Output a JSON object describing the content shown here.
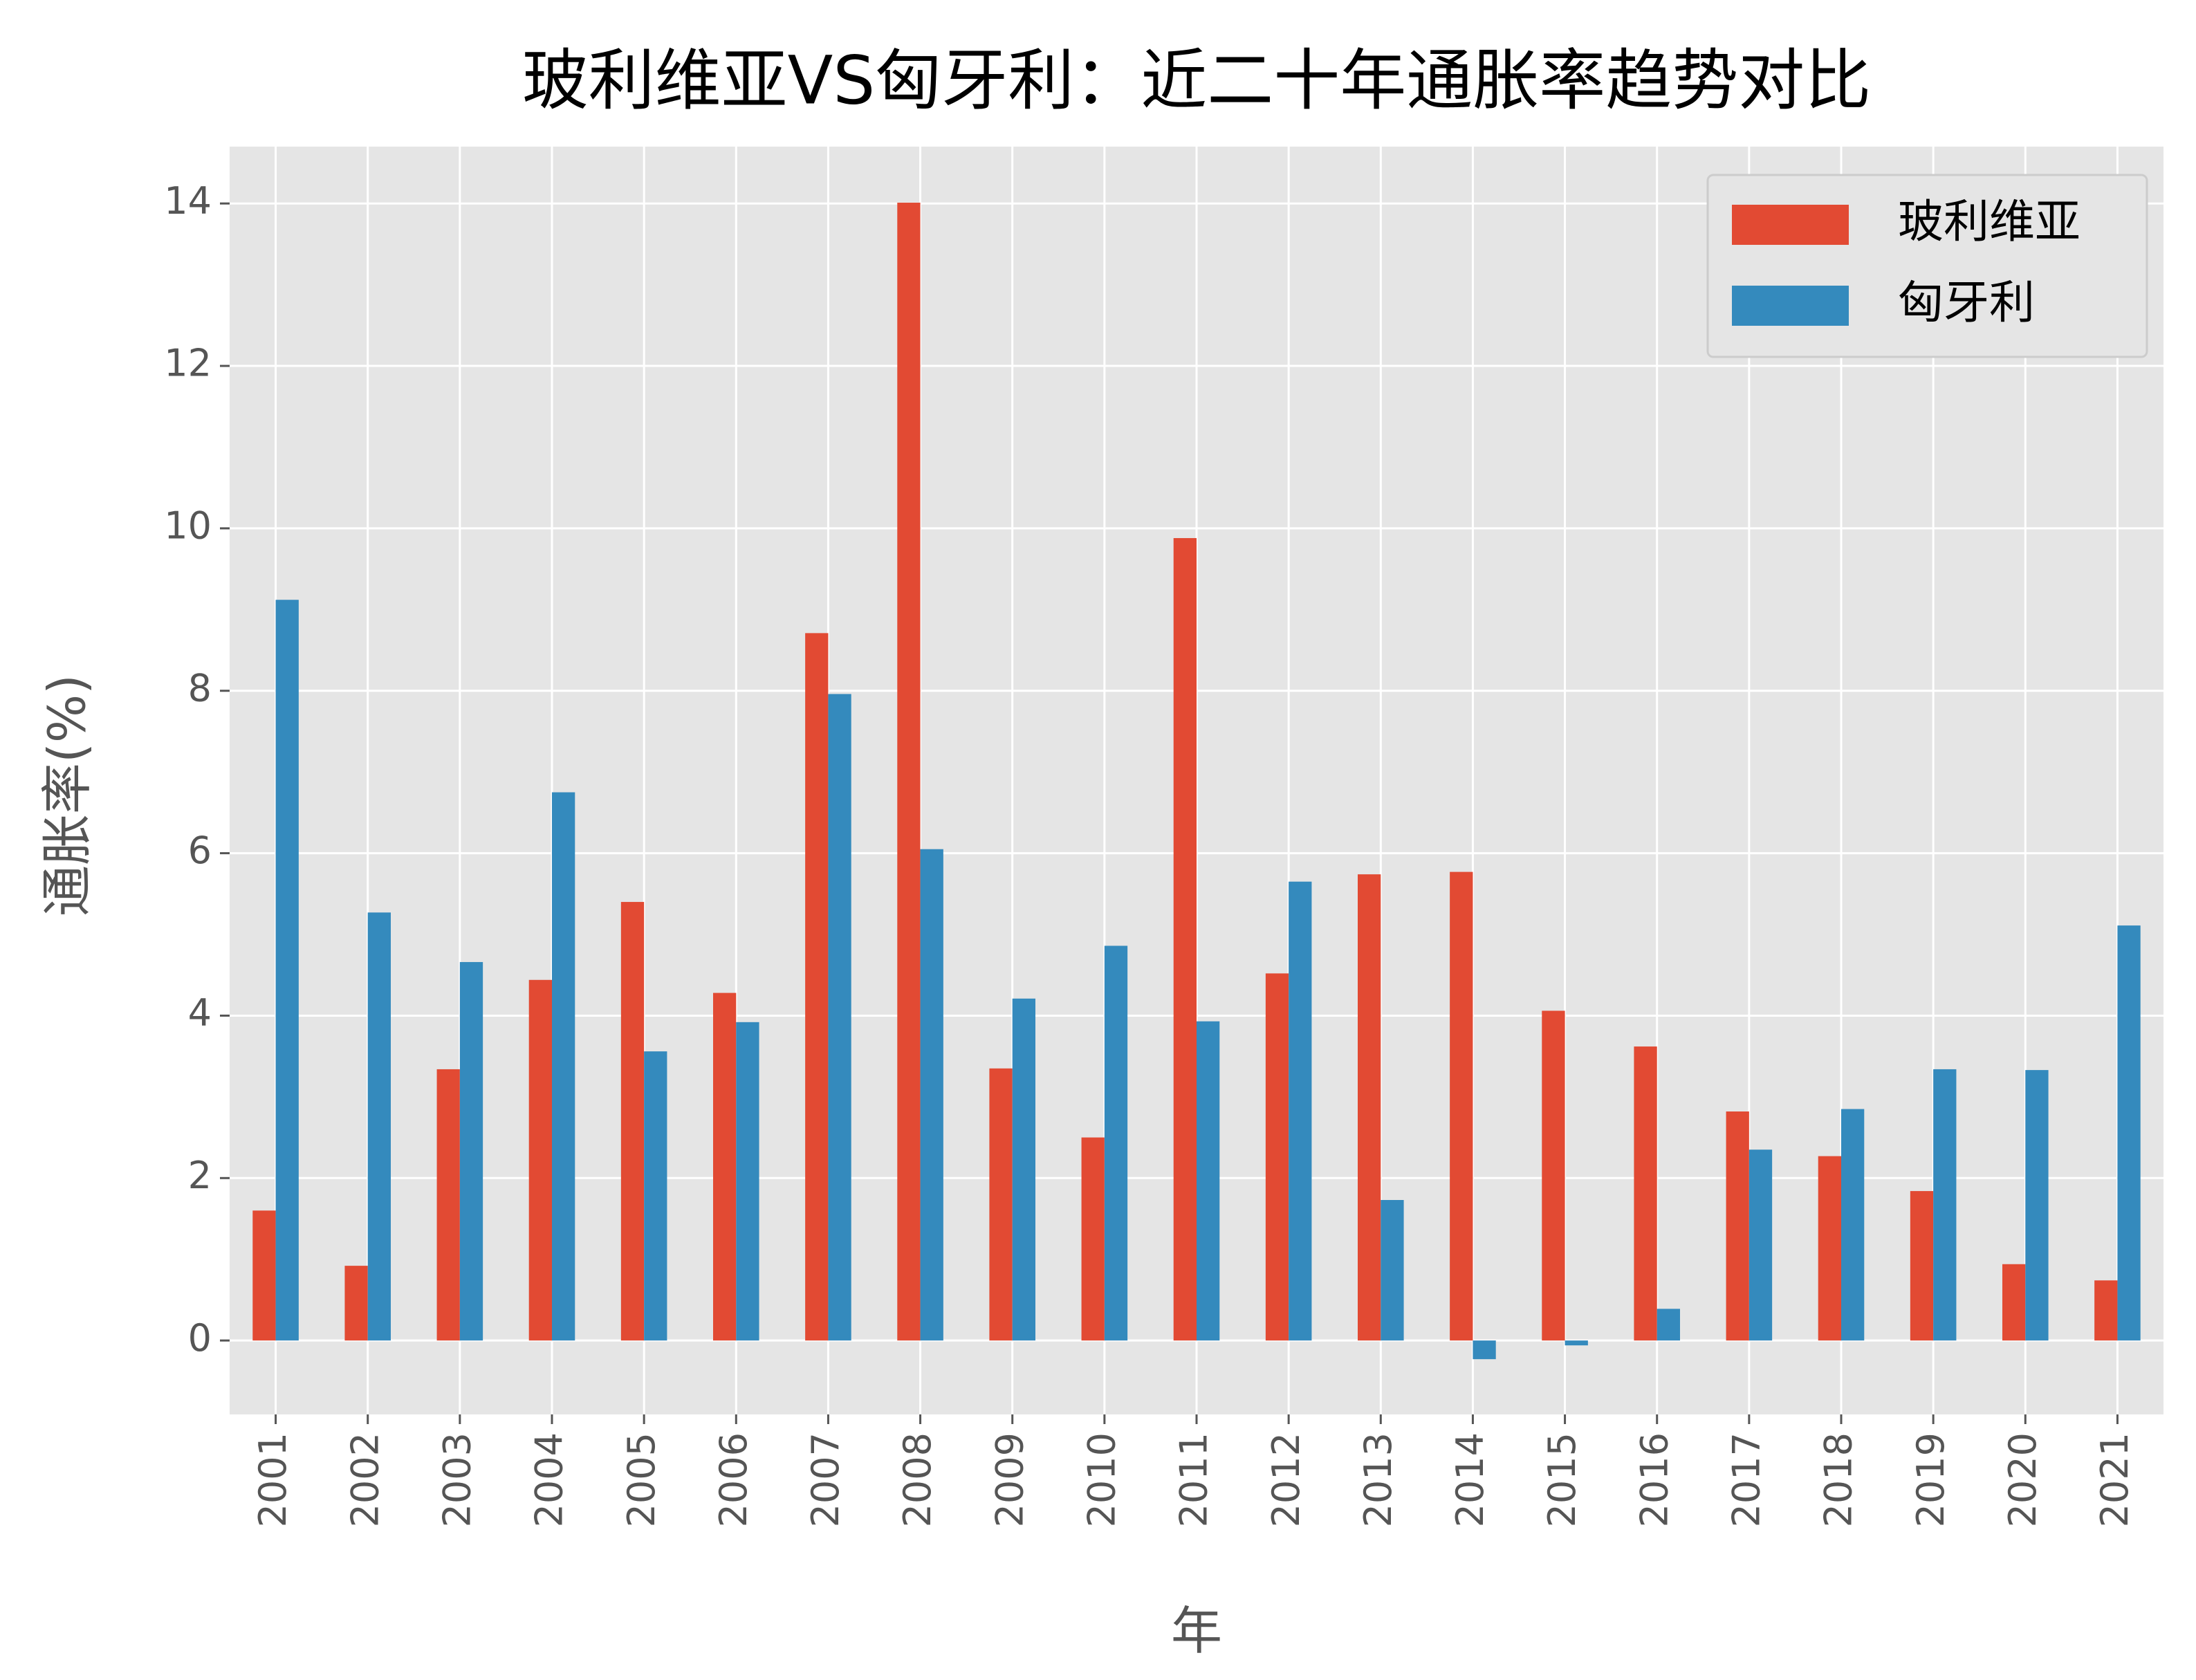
{
  "chart_data": {
    "type": "bar",
    "title": "玻利维亚VS匈牙利：近二十年通胀率趋势对比",
    "x_label": "年",
    "y_label": "通胀率(%)",
    "categories": [
      "2001",
      "2002",
      "2003",
      "2004",
      "2005",
      "2006",
      "2007",
      "2008",
      "2009",
      "2010",
      "2011",
      "2012",
      "2013",
      "2014",
      "2015",
      "2016",
      "2017",
      "2018",
      "2019",
      "2020",
      "2021"
    ],
    "series": [
      {
        "name": "玻利维亚",
        "color": "#E24A33",
        "values": [
          1.6,
          0.92,
          3.34,
          4.44,
          5.4,
          4.28,
          8.71,
          14.01,
          3.35,
          2.5,
          9.88,
          4.52,
          5.74,
          5.77,
          4.06,
          3.62,
          2.82,
          2.27,
          1.84,
          0.94,
          0.74
        ]
      },
      {
        "name": "匈牙利",
        "color": "#348ABD",
        "values": [
          9.12,
          5.27,
          4.66,
          6.75,
          3.56,
          3.92,
          7.96,
          6.05,
          4.21,
          4.86,
          3.93,
          5.65,
          1.73,
          -0.23,
          -0.06,
          0.39,
          2.35,
          2.85,
          3.34,
          3.33,
          5.11
        ]
      }
    ],
    "ylim": [
      -0.91,
      14.7
    ],
    "yticks": [
      0,
      2,
      4,
      6,
      8,
      10,
      12,
      14
    ],
    "grid": true,
    "legend": "upper right"
  }
}
